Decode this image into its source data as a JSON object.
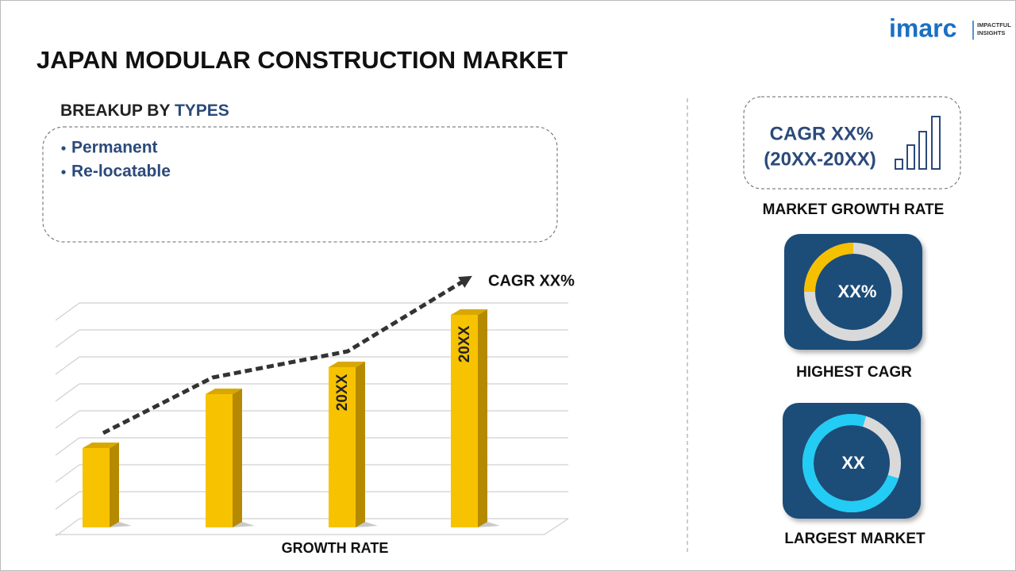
{
  "logo": {
    "name": "imarc",
    "tagline": [
      "IMPACTFUL",
      "INSIGHTS"
    ]
  },
  "header": {
    "title": "JAPAN MODULAR CONSTRUCTION MARKET"
  },
  "breakup": {
    "heading": "BREAKUP BY",
    "highlight": "TYPES",
    "items": [
      "Permanent",
      "Re-locatable"
    ]
  },
  "growth_chart": {
    "trend_label": "CAGR XX%",
    "bar_labels": [
      "20XX",
      "20XX"
    ],
    "axis_label": "GROWTH RATE"
  },
  "cards": [
    {
      "lines": [
        "CAGR XX%",
        "(20XX-20XX)"
      ],
      "caption": "MARKET GROWTH RATE"
    },
    {
      "value": "XX%",
      "caption": "HIGHEST CAGR"
    },
    {
      "value": "XX",
      "caption": "LARGEST MARKET"
    }
  ]
}
